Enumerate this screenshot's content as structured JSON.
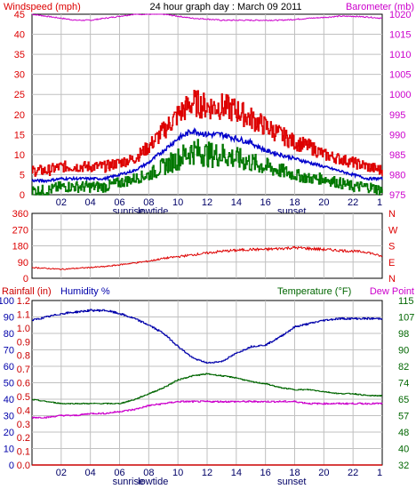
{
  "colors": {
    "wind_red": "#dd0000",
    "avg_blue": "#0000cc",
    "gust_green": "#007700",
    "baro_magenta": "#cc00cc",
    "grid": "#c0c0c0",
    "temp_green": "#006600",
    "humidity_blue": "#0000aa",
    "dewpoint_magenta": "#cc00cc",
    "rain_red": "#cc0000"
  },
  "chart_data": [
    {
      "type": "line",
      "title": "24 hour graph day : March 09 2011",
      "ylabel_left": "Windspeed (mph)",
      "ylabel_right": "Barometer (mb)",
      "x_ticks": [
        "02",
        "04",
        "06",
        "08",
        "10",
        "12",
        "14",
        "16",
        "18",
        "20",
        "22"
      ],
      "x_end_tick": "1",
      "markers": [
        "sunrise",
        "lowtide",
        "sunset"
      ],
      "ylim": [
        0,
        45
      ],
      "y_ticks": [
        "0",
        "5",
        "10",
        "15",
        "20",
        "25",
        "30",
        "35",
        "40",
        "45"
      ],
      "y2lim": [
        975,
        1020
      ],
      "y2_ticks": [
        "975",
        "980",
        "985",
        "990",
        "995",
        "1000",
        "1005",
        "1010",
        "1015",
        "1020"
      ],
      "grid": true,
      "x": [
        0,
        1,
        2,
        3,
        4,
        5,
        6,
        7,
        8,
        9,
        10,
        11,
        12,
        13,
        14,
        15,
        16,
        17,
        18,
        19,
        20,
        21,
        22,
        23,
        24
      ],
      "series": [
        {
          "values": [
            6,
            6,
            7,
            7,
            7,
            7,
            8,
            9,
            12,
            16,
            20,
            23,
            22,
            22,
            21,
            19,
            17,
            15,
            13,
            12,
            10,
            9,
            8,
            7,
            6
          ]
        },
        {
          "values": [
            3.5,
            3.5,
            4,
            4,
            4,
            4,
            5,
            6,
            8,
            11,
            14,
            16,
            15,
            15,
            14,
            13,
            11,
            10,
            9,
            8,
            7,
            6,
            5,
            4,
            4
          ]
        },
        {
          "values": [
            1,
            1,
            2,
            2,
            2,
            2,
            3,
            4,
            5,
            7,
            9,
            11,
            10,
            10,
            9,
            8,
            7,
            6,
            5,
            4,
            4,
            3,
            2,
            2,
            1
          ]
        },
        {
          "values": [
            1020,
            1019.5,
            1019,
            1018.5,
            1018.5,
            1019,
            1019.5,
            1020,
            1020,
            1020,
            1019.5,
            1019,
            1018.8,
            1018.5,
            1018.5,
            1018.5,
            1018.5,
            1018.5,
            1018.7,
            1019,
            1019.2,
            1019.5,
            1019.5,
            1019.3,
            1019
          ]
        }
      ]
    },
    {
      "type": "line",
      "ylim": [
        0,
        360
      ],
      "y_ticks": [
        "0",
        "90",
        "180",
        "270",
        "360"
      ],
      "y2_ticks": [
        "N",
        "E",
        "S",
        "W",
        "N"
      ],
      "grid": true,
      "x": [
        0,
        1,
        2,
        3,
        4,
        5,
        6,
        7,
        8,
        9,
        10,
        11,
        12,
        13,
        14,
        15,
        16,
        17,
        18,
        19,
        20,
        21,
        22,
        23,
        24
      ],
      "series": [
        {
          "values": [
            60,
            55,
            50,
            55,
            60,
            65,
            75,
            85,
            95,
            110,
            120,
            130,
            140,
            150,
            155,
            160,
            160,
            165,
            170,
            165,
            160,
            155,
            150,
            145,
            120
          ]
        }
      ]
    },
    {
      "type": "line",
      "ylabel_left_1": "Rainfall (in)",
      "ylabel_left_2": "Humidity %",
      "ylabel_right_1": "Temperature (°F)",
      "ylabel_right_2": "Dew Point",
      "x_ticks": [
        "02",
        "04",
        "06",
        "08",
        "10",
        "12",
        "14",
        "16",
        "18",
        "20",
        "22"
      ],
      "x_end_tick": "1",
      "markers": [
        "sunrise",
        "lowtide",
        "sunset"
      ],
      "humidity_ticks": [
        "0",
        "10",
        "20",
        "30",
        "40",
        "50",
        "60",
        "70",
        "80",
        "90",
        "100"
      ],
      "rain_ticks": [
        "0.0",
        "0.1",
        "0.2",
        "0.3",
        "0.4",
        "0.5",
        "0.6",
        "0.7",
        "0.8",
        "0.9",
        "1.0",
        "1.1",
        "1.2"
      ],
      "temp_ticks": [
        "32",
        "40",
        "48",
        "57",
        "65",
        "74",
        "82",
        "90",
        "98",
        "107",
        "115"
      ],
      "humidity_lim": [
        0,
        100
      ],
      "rain_lim": [
        0,
        1.2
      ],
      "temp_lim": [
        32,
        115
      ],
      "grid": true,
      "x": [
        0,
        1,
        2,
        3,
        4,
        5,
        6,
        7,
        8,
        9,
        10,
        11,
        12,
        13,
        14,
        15,
        16,
        17,
        18,
        19,
        20,
        21,
        22,
        23,
        24
      ],
      "series": [
        {
          "values": [
            88,
            90,
            92,
            93,
            94,
            94,
            92,
            89,
            85,
            80,
            72,
            65,
            62,
            63,
            68,
            72,
            73,
            78,
            84,
            86,
            88,
            89,
            89,
            89,
            89
          ]
        },
        {
          "values": [
            65,
            64,
            63,
            63,
            63,
            63,
            63,
            65,
            68,
            71,
            75,
            77,
            78,
            77,
            76,
            74,
            73,
            71,
            70,
            70,
            69,
            68,
            68,
            67,
            67
          ]
        },
        {
          "values": [
            56,
            56,
            57,
            57,
            58,
            58,
            59,
            60,
            62,
            63,
            64,
            64,
            64,
            64,
            64,
            64,
            64,
            64,
            64,
            63,
            63,
            63,
            63,
            63,
            63
          ]
        },
        {
          "values": [
            0,
            0,
            0,
            0,
            0,
            0,
            0,
            0,
            0,
            0,
            0,
            0,
            0,
            0,
            0,
            0,
            0,
            0,
            0,
            0,
            0,
            0,
            0,
            0,
            0
          ]
        }
      ]
    }
  ]
}
